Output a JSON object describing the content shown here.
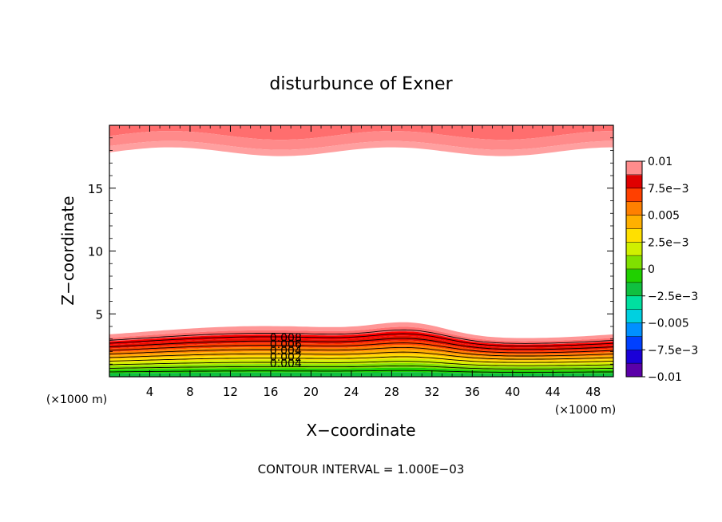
{
  "chart_data": {
    "type": "contour",
    "title": "disturbunce of Exner",
    "xlabel": "X−coordinate",
    "ylabel": "Z−coordinate",
    "x_unit_left": "(×1000 m)",
    "x_unit_right": "(×1000 m)",
    "footer": "CONTOUR INTERVAL = 1.000E−03",
    "xlim": [
      0,
      50
    ],
    "ylim": [
      0,
      20
    ],
    "x_ticks": [
      4,
      8,
      12,
      16,
      20,
      24,
      28,
      32,
      36,
      40,
      44,
      48
    ],
    "y_ticks": [
      5,
      10,
      15
    ],
    "contour_interval": 0.001,
    "contour_labels": [
      "0.008",
      "0.006",
      "0.004",
      "0.002",
      "0.004"
    ],
    "colorbar": {
      "range": [
        -0.01,
        0.01
      ],
      "tick_labels": [
        "0.01",
        "7.5e−3",
        "0.005",
        "2.5e−3",
        "0",
        "−2.5e−3",
        "−0.005",
        "−7.5e−3",
        "−0.01"
      ],
      "colors": [
        "#5a00a8",
        "#1a00d8",
        "#0040ff",
        "#0090ff",
        "#00d0e0",
        "#00e0a0",
        "#10c040",
        "#20d000",
        "#80e000",
        "#d0f000",
        "#ffe000",
        "#ffb000",
        "#ff8000",
        "#ff4000",
        "#e00000",
        "#ff8c8c"
      ]
    },
    "lower_bands": {
      "levels": [
        0.0095,
        0.009,
        0.008,
        0.007,
        0.006,
        0.005,
        0.004,
        0.003,
        0.002,
        0.001
      ],
      "colors": [
        "#ff9696",
        "#ff7070",
        "#ff0000",
        "#e81000",
        "#ff4000",
        "#ff8000",
        "#ffb000",
        "#ffe000",
        "#d0f000",
        "#80e000",
        "#20d000",
        "#10c040"
      ]
    },
    "upper_bands": {
      "colors": [
        "#ff6e6e",
        "#ff8a8a",
        "#ffa0a0"
      ]
    }
  }
}
